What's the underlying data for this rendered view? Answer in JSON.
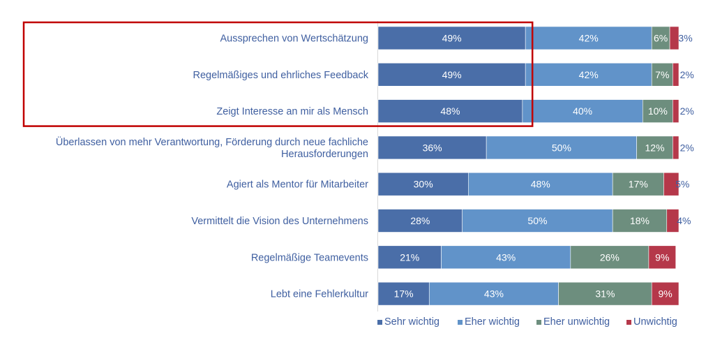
{
  "chart_data": {
    "type": "bar",
    "orientation": "horizontal",
    "stacked": "percent",
    "categories": [
      [
        "Aussprechen von Wertschätzung"
      ],
      [
        "Regelmäßiges und ehrliches Feedback"
      ],
      [
        "Zeigt Interesse an mir als Mensch"
      ],
      [
        "Überlassen von mehr Verantwortung, Förderung durch neue fachliche",
        "Herausforderungen"
      ],
      [
        "Agiert als Mentor für Mitarbeiter"
      ],
      [
        "Vermittelt die Vision des Unternehmens"
      ],
      [
        "Regelmäßige Teamevents"
      ],
      [
        "Lebt eine Fehlerkultur"
      ]
    ],
    "series": [
      {
        "name": "Sehr wichtig",
        "color": "#4A6EA8",
        "values": [
          49,
          49,
          48,
          36,
          30,
          28,
          21,
          17
        ]
      },
      {
        "name": "Eher wichtig",
        "color": "#6193C9",
        "values": [
          42,
          42,
          40,
          50,
          48,
          50,
          43,
          43
        ]
      },
      {
        "name": "Eher unwichtig",
        "color": "#6D8E7E",
        "values": [
          6,
          7,
          10,
          12,
          17,
          18,
          26,
          31
        ]
      },
      {
        "name": "Unwichtig",
        "color": "#B5384A",
        "values": [
          3,
          2,
          2,
          2,
          5,
          4,
          9,
          9
        ]
      }
    ],
    "value_suffix": "%",
    "legend_position": "bottom-right",
    "xlim": [
      0,
      100
    ],
    "grid": false,
    "highlight": {
      "rows": [
        0,
        2
      ],
      "series": "Sehr wichtig",
      "color": "#C00000"
    }
  }
}
